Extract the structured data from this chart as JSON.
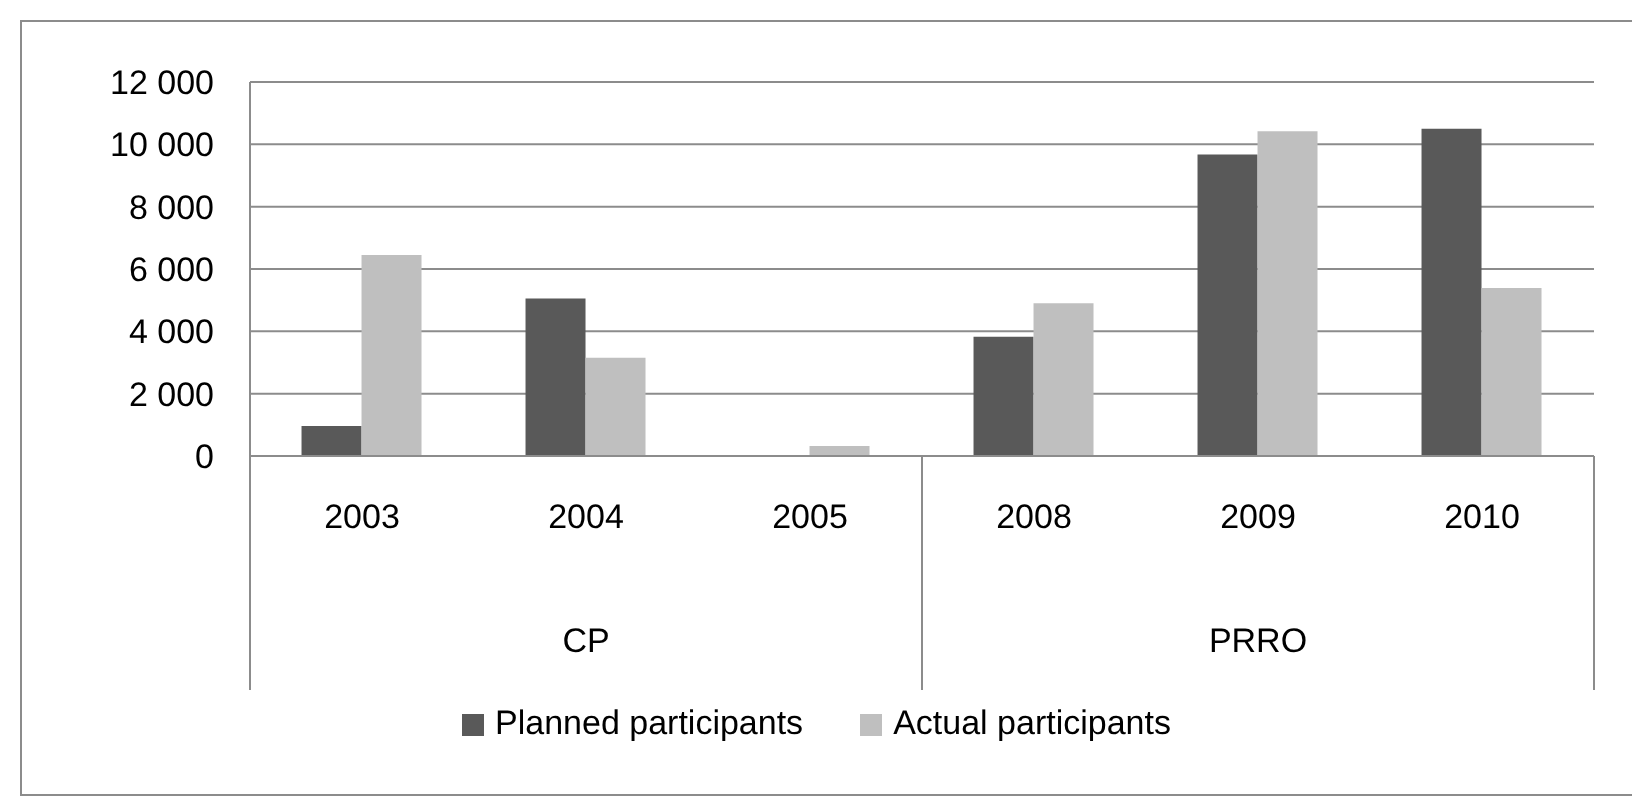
{
  "chart_data": {
    "type": "bar",
    "categories": [
      "2003",
      "2004",
      "2005",
      "2008",
      "2009",
      "2010"
    ],
    "series": [
      {
        "name": "Planned participants",
        "color": "#595959",
        "values": [
          960,
          5050,
          0,
          3830,
          9670,
          10500
        ]
      },
      {
        "name": "Actual participants",
        "color": "#bfbfbf",
        "values": [
          6450,
          3150,
          320,
          4900,
          10420,
          5390
        ]
      }
    ],
    "ylim": [
      0,
      12000
    ],
    "yticks": [
      {
        "value": 0,
        "label": "0"
      },
      {
        "value": 2000,
        "label": "2 000"
      },
      {
        "value": 4000,
        "label": "4 000"
      },
      {
        "value": 6000,
        "label": "6 000"
      },
      {
        "value": 8000,
        "label": "8 000"
      },
      {
        "value": 10000,
        "label": "10 000"
      },
      {
        "value": 12000,
        "label": "12 000"
      }
    ],
    "annotations": [
      "CP",
      "PRRO"
    ],
    "grid": "y",
    "legend": "bottom"
  }
}
